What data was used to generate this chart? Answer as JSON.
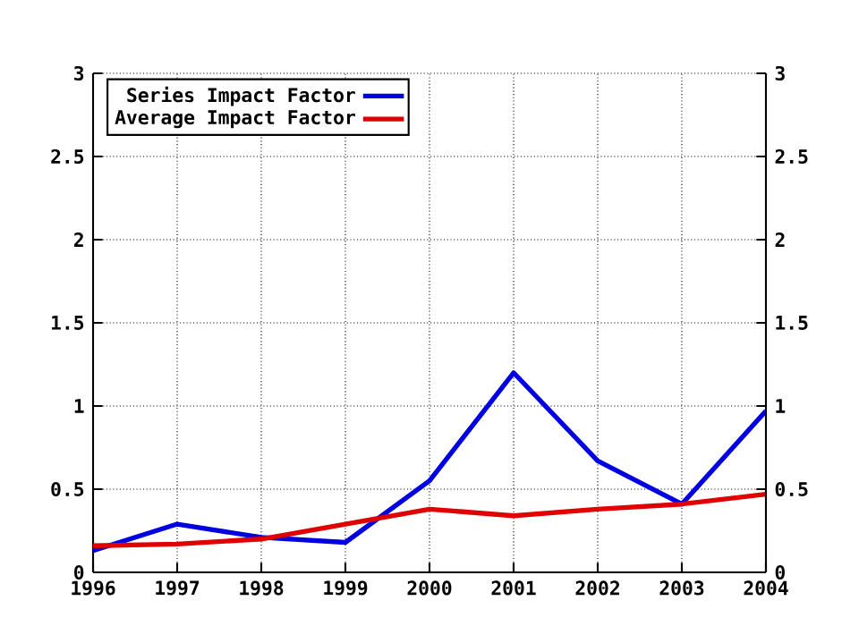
{
  "chart_data": {
    "type": "line",
    "x": [
      1996,
      1997,
      1998,
      1999,
      2000,
      2001,
      2002,
      2003,
      2004
    ],
    "series": [
      {
        "name": "Series Impact Factor",
        "color": "#0000e0",
        "values": [
          0.13,
          0.29,
          0.21,
          0.18,
          0.55,
          1.2,
          0.67,
          0.41,
          0.97
        ]
      },
      {
        "name": "Average Impact Factor",
        "color": "#e00000",
        "values": [
          0.16,
          0.17,
          0.2,
          0.29,
          0.38,
          0.34,
          0.38,
          0.41,
          0.47
        ]
      }
    ],
    "xlim": [
      1996,
      2004
    ],
    "xticks": [
      1996,
      1997,
      1998,
      1999,
      2000,
      2001,
      2002,
      2003,
      2004
    ],
    "ylim": [
      0,
      3
    ],
    "yticks": [
      0,
      {
        "value": 0.5,
        "label": "0.5"
      },
      1,
      {
        "value": 1.5,
        "label": "1.5"
      },
      2,
      {
        "value": 2.5,
        "label": "2.5"
      },
      3
    ],
    "y2lim": [
      0,
      3
    ],
    "y2ticks": [
      0,
      {
        "value": 0.5,
        "label": "0.5"
      },
      1,
      {
        "value": 1.5,
        "label": "1.5"
      },
      2,
      {
        "value": 2.5,
        "label": "2.5"
      },
      3
    ],
    "grid": true,
    "legend": "top left",
    "marker": "none",
    "line_style": "solid"
  }
}
